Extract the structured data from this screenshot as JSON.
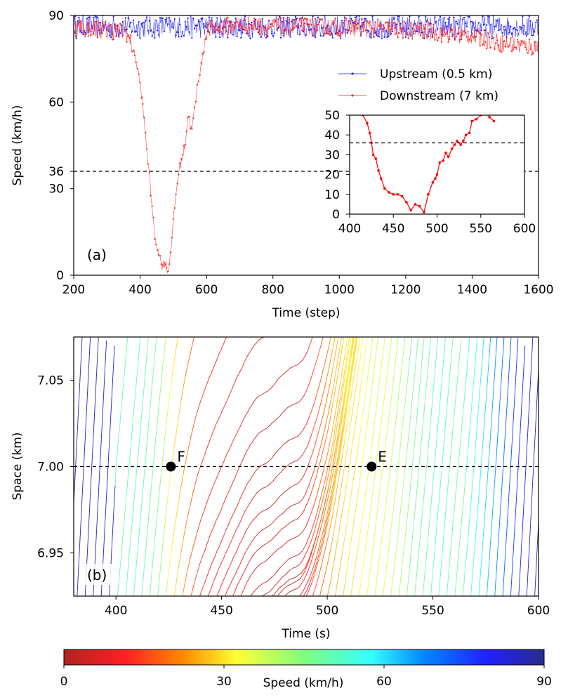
{
  "chart_data": [
    {
      "panel_label": "(a)",
      "type": "line",
      "xlabel": "Time (step)",
      "ylabel": "Speed (km/h)",
      "xlim": [
        200,
        1600
      ],
      "ylim": [
        0,
        90
      ],
      "xticks": [
        "200",
        "400",
        "600",
        "800",
        "1000",
        "1200",
        "1400",
        "1600"
      ],
      "yticks": [
        "0",
        "30",
        "36",
        "60",
        "90"
      ],
      "reference_line": {
        "y": 36,
        "style": "dashed"
      },
      "legend_position": "upper-right",
      "series": [
        {
          "name": "Upstream (0.5 km)",
          "color": "#1a1aff",
          "mean": 86,
          "noise": 2.5
        },
        {
          "name": "Downstream (7 km)",
          "color": "#ff2020",
          "x": [
            200,
            300,
            360,
            380,
            395,
            405,
            415,
            425,
            435,
            445,
            455,
            465,
            475,
            485,
            495,
            505,
            515,
            525,
            535,
            545,
            555,
            565,
            575,
            585,
            600,
            650,
            700,
            800,
            1000,
            1200,
            1300,
            1400,
            1500,
            1600
          ],
          "y": [
            86,
            85,
            84,
            78,
            70,
            62,
            50,
            38,
            25,
            12,
            9,
            3,
            5,
            1,
            12,
            25,
            35,
            40,
            45,
            56,
            50,
            58,
            68,
            73,
            85,
            86,
            87,
            86,
            86,
            85,
            84,
            83,
            80,
            79
          ]
        }
      ],
      "inset": {
        "xlim": [
          400,
          600
        ],
        "ylim": [
          0,
          50
        ],
        "xticks": [
          "400",
          "450",
          "500",
          "550",
          "600"
        ],
        "yticks": [
          "0",
          "10",
          "20",
          "30",
          "40",
          "50"
        ],
        "reference_line": {
          "y": 36,
          "style": "dashed"
        },
        "x": [
          415,
          420,
          423,
          425,
          427,
          430,
          433,
          436,
          440,
          445,
          450,
          455,
          460,
          465,
          470,
          475,
          480,
          485,
          490,
          495,
          498,
          500,
          503,
          507,
          510,
          513,
          517,
          520,
          523,
          527,
          530,
          533,
          537,
          540,
          545,
          550,
          555,
          560,
          565
        ],
        "y": [
          50,
          46,
          41,
          36,
          30,
          28,
          22,
          18,
          13,
          11,
          10,
          10,
          9,
          6,
          2,
          5,
          4,
          1,
          10,
          16,
          18,
          20,
          26,
          27,
          31,
          29,
          33,
          35,
          37,
          35,
          37,
          40,
          41,
          47,
          48,
          50,
          53,
          49,
          47
        ]
      }
    },
    {
      "panel_label": "(b)",
      "type": "line",
      "xlabel": "Time (s)",
      "ylabel": "Space (km)",
      "xlim": [
        380,
        600
      ],
      "ylim": [
        6.925,
        7.075
      ],
      "xticks": [
        "400",
        "450",
        "500",
        "550",
        "600"
      ],
      "yticks": [
        "6.95",
        "7.00",
        "7.05"
      ],
      "reference_line": {
        "y": 7.0,
        "style": "dashed"
      },
      "trajectory_count": 95,
      "trajectory_spacing_s": 3.8,
      "points": [
        {
          "label": "F",
          "x": 426,
          "y": 7.0
        },
        {
          "label": "E",
          "x": 521,
          "y": 7.0
        }
      ]
    },
    {
      "type": "colorbar",
      "label": "Speed (km/h)",
      "range": [
        0,
        90
      ],
      "ticks": [
        "0",
        "30",
        "60",
        "90"
      ],
      "colormap": "jet_reversed"
    }
  ]
}
